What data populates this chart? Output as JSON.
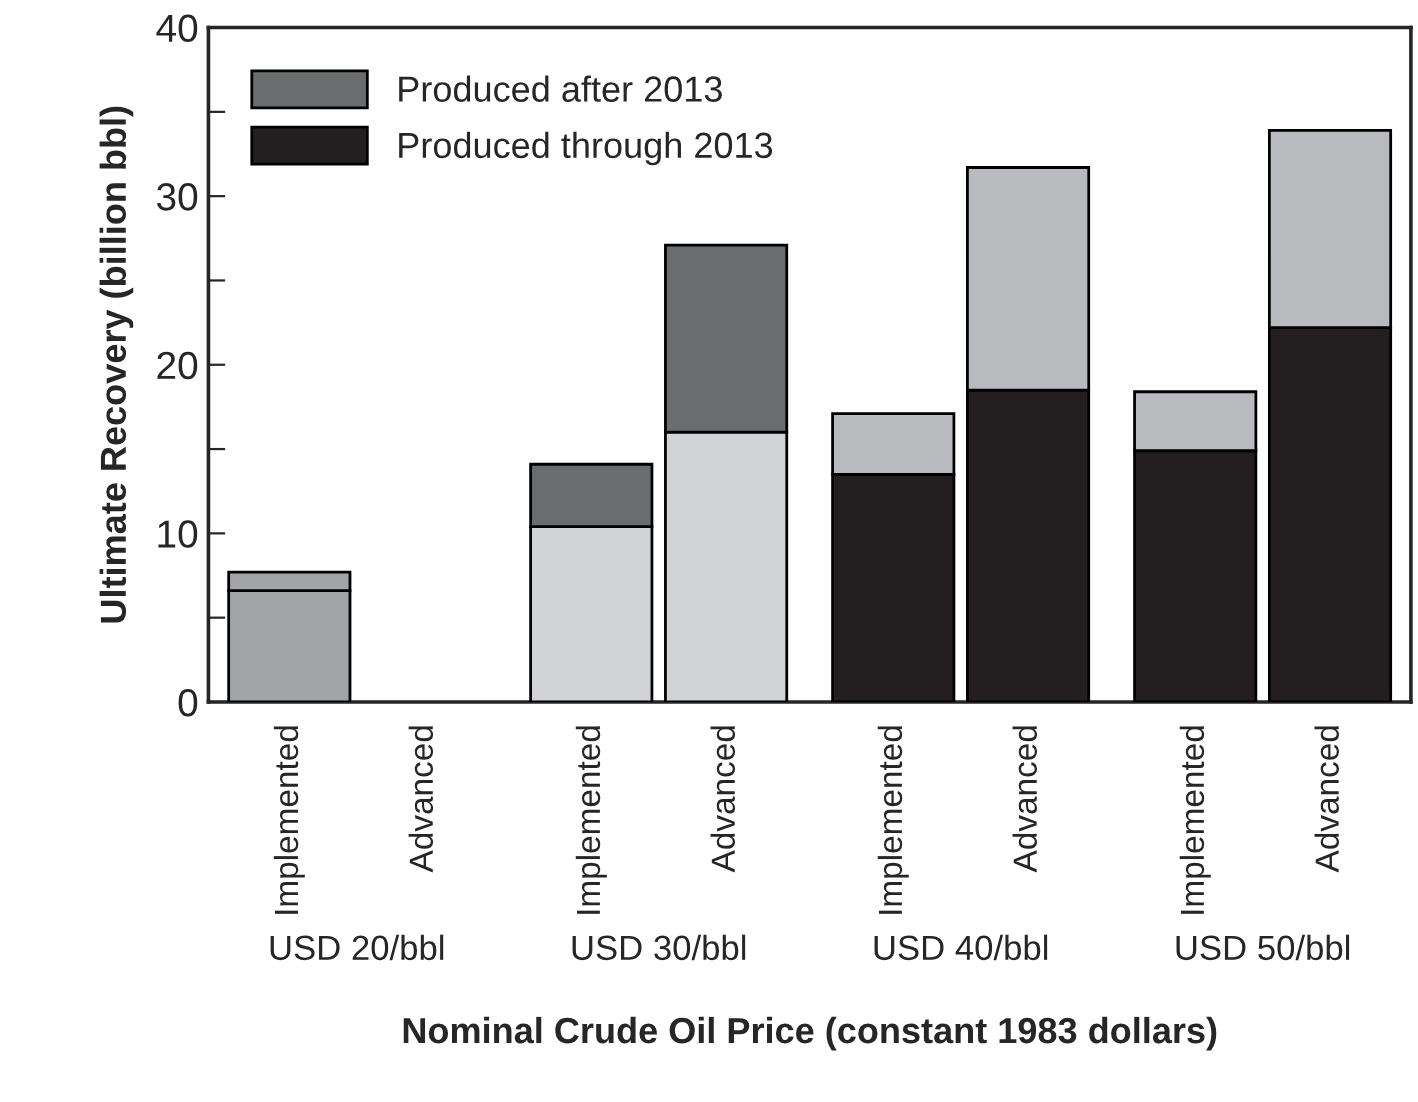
{
  "chart_data": {
    "type": "bar",
    "stacked": true,
    "xlabel": "Nominal Crude Oil Price (constant 1983 dollars)",
    "ylabel": "Ultimate Recovery (billion bbl)",
    "categories": [
      "Implemented",
      "Advanced",
      "Implemented",
      "Advanced",
      "Implemented",
      "Advanced",
      "Implemented",
      "Advanced"
    ],
    "annotations": [
      "USD 20/bbl",
      "USD 30/bbl",
      "USD 40/bbl",
      "USD 50/bbl"
    ],
    "series": [
      {
        "name": "Produced through 2013",
        "color": "#231f20",
        "values": [
          6.6,
          0,
          10.4,
          16.0,
          13.5,
          18.5,
          14.9,
          22.2
        ],
        "colors": [
          "#a3a4a6",
          "#a3a4a6",
          "#d2d3d5",
          "#d2d3d5",
          "#231f20",
          "#231f20",
          "#231f20",
          "#231f20"
        ]
      },
      {
        "name": "Produced after 2013",
        "color": "#6b6c6e",
        "values": [
          1.1,
          0,
          3.7,
          11.1,
          3.6,
          13.2,
          3.5,
          11.7
        ],
        "colors": [
          "#a3a4a6",
          "#6b6c6e",
          "#6b6c6e",
          "#6b6c6e",
          "#b9babd",
          "#b9babd",
          "#b9babd",
          "#b9babd"
        ]
      }
    ],
    "ylim": [
      0,
      40
    ],
    "yticks": [
      0,
      {
        "value": 5,
        "label": null
      },
      10,
      {
        "value": 15,
        "label": null
      },
      20,
      {
        "value": 25,
        "label": null
      },
      30,
      {
        "value": 35,
        "label": null
      },
      40
    ],
    "grid": false,
    "legend": "top left"
  }
}
